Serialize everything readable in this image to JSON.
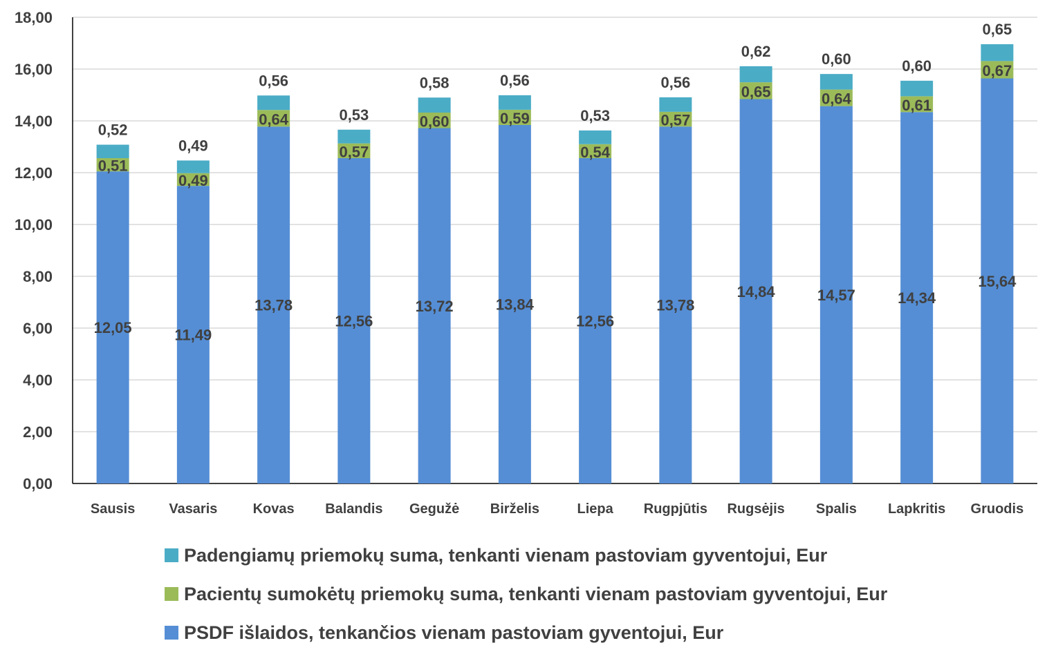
{
  "chart_data": {
    "type": "bar",
    "stacked": true,
    "categories": [
      "Sausis",
      "Vasaris",
      "Kovas",
      "Balandis",
      "Gegužė",
      "Birželis",
      "Liepa",
      "Rugpjūtis",
      "Rugsėjis",
      "Spalis",
      "Lapkritis",
      "Gruodis"
    ],
    "series": [
      {
        "name": "PSDF išlaidos, tenkančios vienam pastoviam gyventojui, Eur",
        "color": "#558ED5",
        "values": [
          12.05,
          11.49,
          13.78,
          12.56,
          13.72,
          13.84,
          12.56,
          13.78,
          14.84,
          14.57,
          14.34,
          15.64
        ],
        "labels": [
          "12,05",
          "11,49",
          "13,78",
          "12,56",
          "13,72",
          "13,84",
          "12,56",
          "13,78",
          "14,84",
          "14,57",
          "14,34",
          "15,64"
        ]
      },
      {
        "name": "Pacientų sumokėtų priemokų suma, tenkanti vienam pastoviam gyventojui, Eur",
        "color": "#9BBB59",
        "values": [
          0.51,
          0.49,
          0.64,
          0.57,
          0.6,
          0.59,
          0.54,
          0.57,
          0.65,
          0.64,
          0.61,
          0.67
        ],
        "labels": [
          "0,51",
          "0,49",
          "0,64",
          "0,57",
          "0,60",
          "0,59",
          "0,54",
          "0,57",
          "0,65",
          "0,64",
          "0,61",
          "0,67"
        ]
      },
      {
        "name": "Padengiamų priemokų suma, tenkanti vienam pastoviam gyventojui, Eur",
        "color": "#4BACC6",
        "values": [
          0.52,
          0.49,
          0.56,
          0.53,
          0.58,
          0.56,
          0.53,
          0.56,
          0.62,
          0.6,
          0.6,
          0.65
        ],
        "labels": [
          "0,52",
          "0,49",
          "0,56",
          "0,53",
          "0,58",
          "0,56",
          "0,53",
          "0,56",
          "0,62",
          "0,60",
          "0,60",
          "0,65"
        ]
      }
    ],
    "yticks": [
      "0,00",
      "2,00",
      "4,00",
      "6,00",
      "8,00",
      "10,00",
      "12,00",
      "14,00",
      "16,00",
      "18,00"
    ],
    "ylim": [
      0,
      18
    ],
    "grid": true,
    "legend_position": "bottom",
    "legend_order": [
      2,
      1,
      0
    ]
  }
}
